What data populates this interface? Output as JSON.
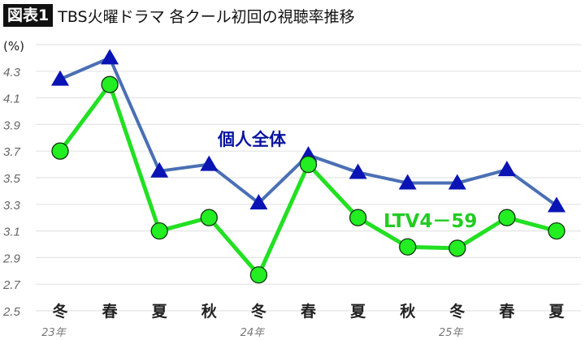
{
  "header": {
    "badge": "図表1",
    "title": "TBS火曜ドラマ 各クール初回の視聴率推移"
  },
  "chart_data": {
    "type": "line",
    "unit_label": "(%)",
    "ylim": [
      2.5,
      4.5
    ],
    "yticks": [
      "2.5",
      "2.7",
      "2.9",
      "3.1",
      "3.3",
      "3.5",
      "3.7",
      "3.9",
      "4.1",
      "4.3"
    ],
    "categories": [
      "冬",
      "春",
      "夏",
      "秋",
      "冬",
      "春",
      "夏",
      "秋",
      "冬",
      "春",
      "夏"
    ],
    "year_labels": [
      {
        "index": 0,
        "label": "23年"
      },
      {
        "index": 4,
        "label": "24年"
      },
      {
        "index": 8,
        "label": "25年"
      }
    ],
    "grid": true,
    "series": [
      {
        "name": "個人全体",
        "color": "#4a6fb5",
        "marker": "triangle",
        "marker_color": "#0a14b4",
        "label_color": "#0a14a0",
        "values": [
          4.24,
          4.4,
          3.55,
          3.6,
          3.31,
          3.67,
          3.54,
          3.46,
          3.46,
          3.56,
          3.29
        ]
      },
      {
        "name": "LTV4－59",
        "color": "#22e022",
        "marker": "circle",
        "marker_color": "#22ee22",
        "label_color": "#22cc22",
        "values": [
          3.7,
          4.2,
          3.1,
          3.2,
          2.77,
          3.6,
          3.2,
          2.98,
          2.97,
          3.2,
          3.1
        ]
      }
    ]
  }
}
